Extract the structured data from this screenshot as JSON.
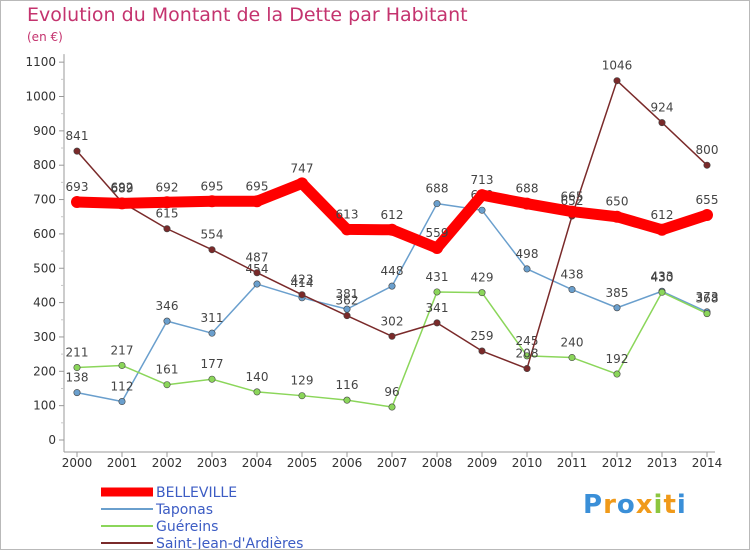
{
  "chart_data": {
    "type": "line",
    "title": "Evolution du Montant de la Dette par Habitant",
    "subtitle": "(en €)",
    "x": [
      "2000",
      "2001",
      "2002",
      "2003",
      "2004",
      "2005",
      "2006",
      "2007",
      "2008",
      "2009",
      "2010",
      "2011",
      "2012",
      "2013",
      "2014"
    ],
    "ylim": [
      0,
      1100
    ],
    "yticks": [
      0,
      100,
      200,
      300,
      400,
      500,
      600,
      700,
      800,
      900,
      1000,
      1100
    ],
    "grid": false,
    "legend_position": "bottom-left",
    "series": [
      {
        "name": "BELLEVILLE",
        "color": "#ff0000",
        "highlight": true,
        "values": [
          693,
          689,
          692,
          695,
          695,
          747,
          613,
          612,
          559,
          713,
          688,
          665,
          650,
          612,
          655
        ]
      },
      {
        "name": "Taponas",
        "color": "#6a9fcd",
        "highlight": false,
        "values": [
          138,
          112,
          346,
          311,
          454,
          414,
          381,
          448,
          688,
          669,
          498,
          438,
          385,
          433,
          373
        ]
      },
      {
        "name": "Guéreins",
        "color": "#8bd65a",
        "highlight": false,
        "values": [
          211,
          217,
          161,
          177,
          140,
          129,
          116,
          96,
          431,
          429,
          245,
          240,
          192,
          430,
          368
        ]
      },
      {
        "name": "Saint-Jean-d'Ardières",
        "color": "#7a2a2a",
        "highlight": false,
        "values": [
          841,
          692,
          615,
          554,
          487,
          423,
          362,
          302,
          341,
          259,
          208,
          652,
          1046,
          924,
          800
        ]
      }
    ]
  },
  "logo": {
    "letters": [
      "P",
      "r",
      "o",
      "x",
      "i",
      "t",
      "i"
    ],
    "colors": [
      "#3a8fd8",
      "#f09a1a",
      "#3a8fd8",
      "#f09a1a",
      "#8cc63f",
      "#f09a1a",
      "#3a8fd8"
    ]
  }
}
